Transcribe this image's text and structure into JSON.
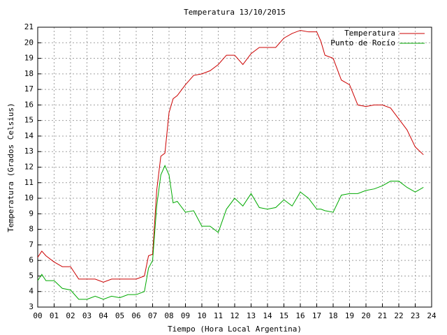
{
  "chart_data": {
    "type": "line",
    "title": "Temperatura 13/10/2015",
    "x_label": "Tiempo (Hora Local Argentina)",
    "y_label": "Temperatura (Grados Celsius)",
    "x": [
      0,
      0.25,
      0.5,
      1,
      1.5,
      2,
      2.5,
      3,
      3.5,
      4,
      4.5,
      5,
      5.5,
      6,
      6.5,
      6.75,
      7,
      7.25,
      7.5,
      7.75,
      8,
      8.25,
      8.5,
      9,
      9.5,
      10,
      10.5,
      11,
      11.5,
      12,
      12.5,
      13,
      13.5,
      14,
      14.5,
      15,
      15.5,
      16,
      16.5,
      17,
      17.25,
      17.5,
      18,
      18.5,
      19,
      19.5,
      20,
      20.5,
      21,
      21.5,
      22,
      22.5,
      23,
      23.5
    ],
    "series": [
      {
        "name": "Temperatura",
        "color": "#cc0000",
        "values": [
          6.2,
          6.6,
          6.3,
          5.9,
          5.6,
          5.6,
          4.8,
          4.8,
          4.8,
          4.6,
          4.8,
          4.8,
          4.8,
          4.8,
          5.0,
          6.3,
          6.4,
          10.5,
          12.7,
          12.9,
          15.5,
          16.4,
          16.6,
          17.3,
          17.9,
          18.0,
          18.2,
          18.6,
          19.2,
          19.2,
          18.6,
          19.3,
          19.7,
          19.7,
          19.7,
          20.3,
          20.6,
          20.8,
          20.7,
          20.7,
          20.1,
          19.2,
          19.0,
          17.6,
          17.3,
          16.0,
          15.9,
          16.0,
          16.0,
          15.8,
          15.1,
          14.4,
          13.3,
          12.8
        ]
      },
      {
        "name": "Punto de Rocío",
        "color": "#00aa00",
        "values": [
          4.7,
          5.1,
          4.7,
          4.7,
          4.2,
          4.1,
          3.5,
          3.5,
          3.7,
          3.5,
          3.7,
          3.6,
          3.8,
          3.8,
          4.0,
          5.5,
          6.0,
          9.5,
          11.5,
          12.1,
          11.5,
          9.7,
          9.8,
          9.1,
          9.2,
          8.2,
          8.2,
          7.8,
          9.3,
          10.0,
          9.5,
          10.3,
          9.4,
          9.3,
          9.4,
          9.9,
          9.5,
          10.4,
          10.0,
          9.3,
          9.3,
          9.2,
          9.1,
          10.2,
          10.3,
          10.3,
          10.5,
          10.6,
          10.8,
          11.1,
          11.1,
          10.7,
          10.4,
          10.7
        ]
      }
    ],
    "xlim": [
      0,
      24
    ],
    "xticks": [
      {
        "value": 0,
        "label": "00"
      },
      {
        "value": 1,
        "label": "01"
      },
      {
        "value": 2,
        "label": "02"
      },
      {
        "value": 3,
        "label": "03"
      },
      {
        "value": 4,
        "label": "04"
      },
      {
        "value": 5,
        "label": "05"
      },
      {
        "value": 6,
        "label": "06"
      },
      {
        "value": 7,
        "label": "07"
      },
      {
        "value": 8,
        "label": "08"
      },
      {
        "value": 9,
        "label": "09"
      },
      10,
      11,
      12,
      13,
      14,
      15,
      16,
      17,
      18,
      19,
      20,
      21,
      22,
      23,
      24
    ],
    "ylim": [
      3,
      21
    ],
    "yticks": [
      3,
      4,
      5,
      6,
      7,
      8,
      9,
      10,
      11,
      12,
      13,
      14,
      15,
      16,
      17,
      18,
      19,
      20,
      21
    ],
    "grid": true,
    "legend": "top-right"
  }
}
